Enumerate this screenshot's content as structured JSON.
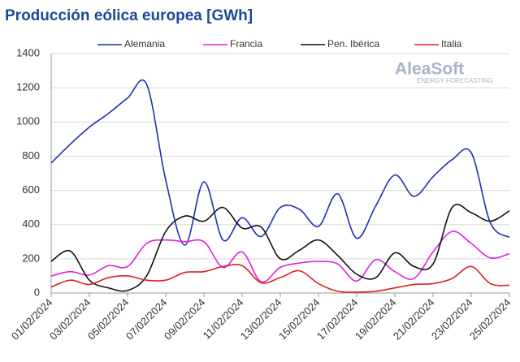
{
  "chart_data": {
    "type": "line",
    "title": "Producción eólica europea [GWh]",
    "logo": {
      "name": "AleaSoft",
      "tagline": "ENERGY FORECASTING"
    },
    "categories": [
      "01/02/2024",
      null,
      "03/02/2024",
      null,
      "05/02/2024",
      null,
      "07/02/2024",
      null,
      "09/02/2024",
      null,
      "11/02/2024",
      null,
      "13/02/2024",
      null,
      "15/02/2024",
      null,
      "17/02/2024",
      null,
      "19/02/2024",
      null,
      "21/02/2024",
      null,
      "23/02/2024",
      null,
      "25/02/2024"
    ],
    "series": [
      {
        "name": "Alemania",
        "color": "#1f2fb5",
        "values": [
          760,
          870,
          970,
          1050,
          1140,
          1220,
          660,
          280,
          650,
          310,
          440,
          330,
          500,
          490,
          390,
          580,
          320,
          510,
          690,
          565,
          680,
          780,
          820,
          410,
          325
        ]
      },
      {
        "name": "Francia",
        "color": "#e020e0",
        "values": [
          100,
          125,
          105,
          160,
          155,
          290,
          310,
          300,
          300,
          150,
          240,
          65,
          150,
          175,
          185,
          170,
          70,
          195,
          125,
          85,
          240,
          360,
          290,
          205,
          230
        ]
      },
      {
        "name": "Pen. Ibérica",
        "color": "#111111",
        "values": [
          185,
          245,
          75,
          30,
          15,
          100,
          360,
          450,
          420,
          500,
          380,
          385,
          200,
          250,
          310,
          220,
          110,
          90,
          235,
          155,
          170,
          500,
          470,
          420,
          480
        ]
      },
      {
        "name": "Italia",
        "color": "#e0201a",
        "values": [
          35,
          75,
          50,
          90,
          100,
          75,
          75,
          120,
          125,
          155,
          160,
          60,
          90,
          130,
          55,
          10,
          5,
          10,
          30,
          50,
          55,
          85,
          155,
          55,
          45
        ]
      }
    ],
    "ylim": [
      0,
      1400
    ],
    "yticks": [
      0,
      200,
      400,
      600,
      800,
      1000,
      1200,
      1400
    ],
    "grid": true
  }
}
